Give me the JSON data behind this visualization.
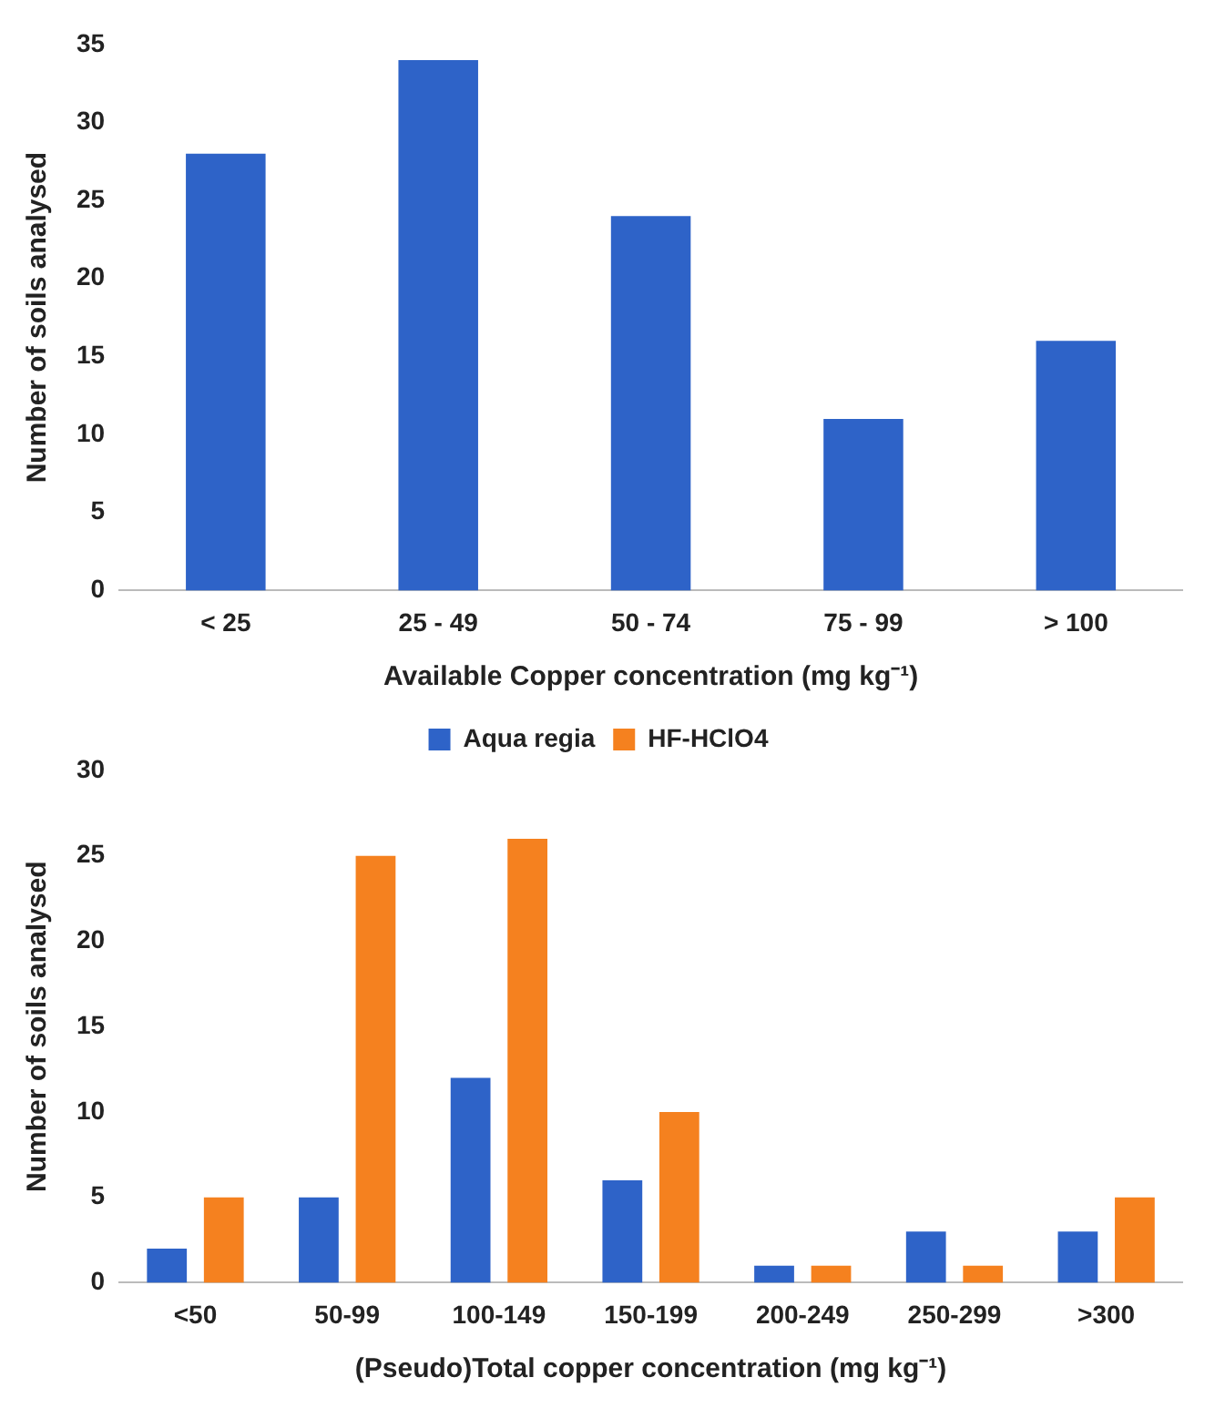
{
  "chart_data": [
    {
      "type": "bar",
      "categories": [
        "< 25",
        "25 - 49",
        "50 - 74",
        "75 - 99",
        "> 100"
      ],
      "values": [
        28,
        34,
        24,
        11,
        16
      ],
      "color": "#2e63c8",
      "xlabel": "Available Copper concentration (mg kg⁻¹)",
      "ylabel": "Number of soils analysed",
      "ylim": [
        0,
        35
      ],
      "yticks": [
        0,
        5,
        10,
        15,
        20,
        25,
        30,
        35
      ],
      "grid": false,
      "legend": false
    },
    {
      "type": "bar",
      "categories": [
        "<50",
        "50-99",
        "100-149",
        "150-199",
        "200-249",
        "250-299",
        ">300"
      ],
      "series": [
        {
          "name": "Aqua regia",
          "color": "#2e63c8",
          "values": [
            2,
            5,
            12,
            6,
            1,
            3,
            3
          ]
        },
        {
          "name": "HF-HClO4",
          "color": "#f5811f",
          "values": [
            5,
            25,
            26,
            10,
            1,
            1,
            5
          ]
        }
      ],
      "xlabel": "(Pseudo)Total copper concentration (mg kg⁻¹)",
      "ylabel": "Number of soils analysed",
      "ylim": [
        0,
        30
      ],
      "yticks": [
        0,
        5,
        10,
        15,
        20,
        25,
        30
      ],
      "grid": false,
      "legend": "top"
    }
  ]
}
